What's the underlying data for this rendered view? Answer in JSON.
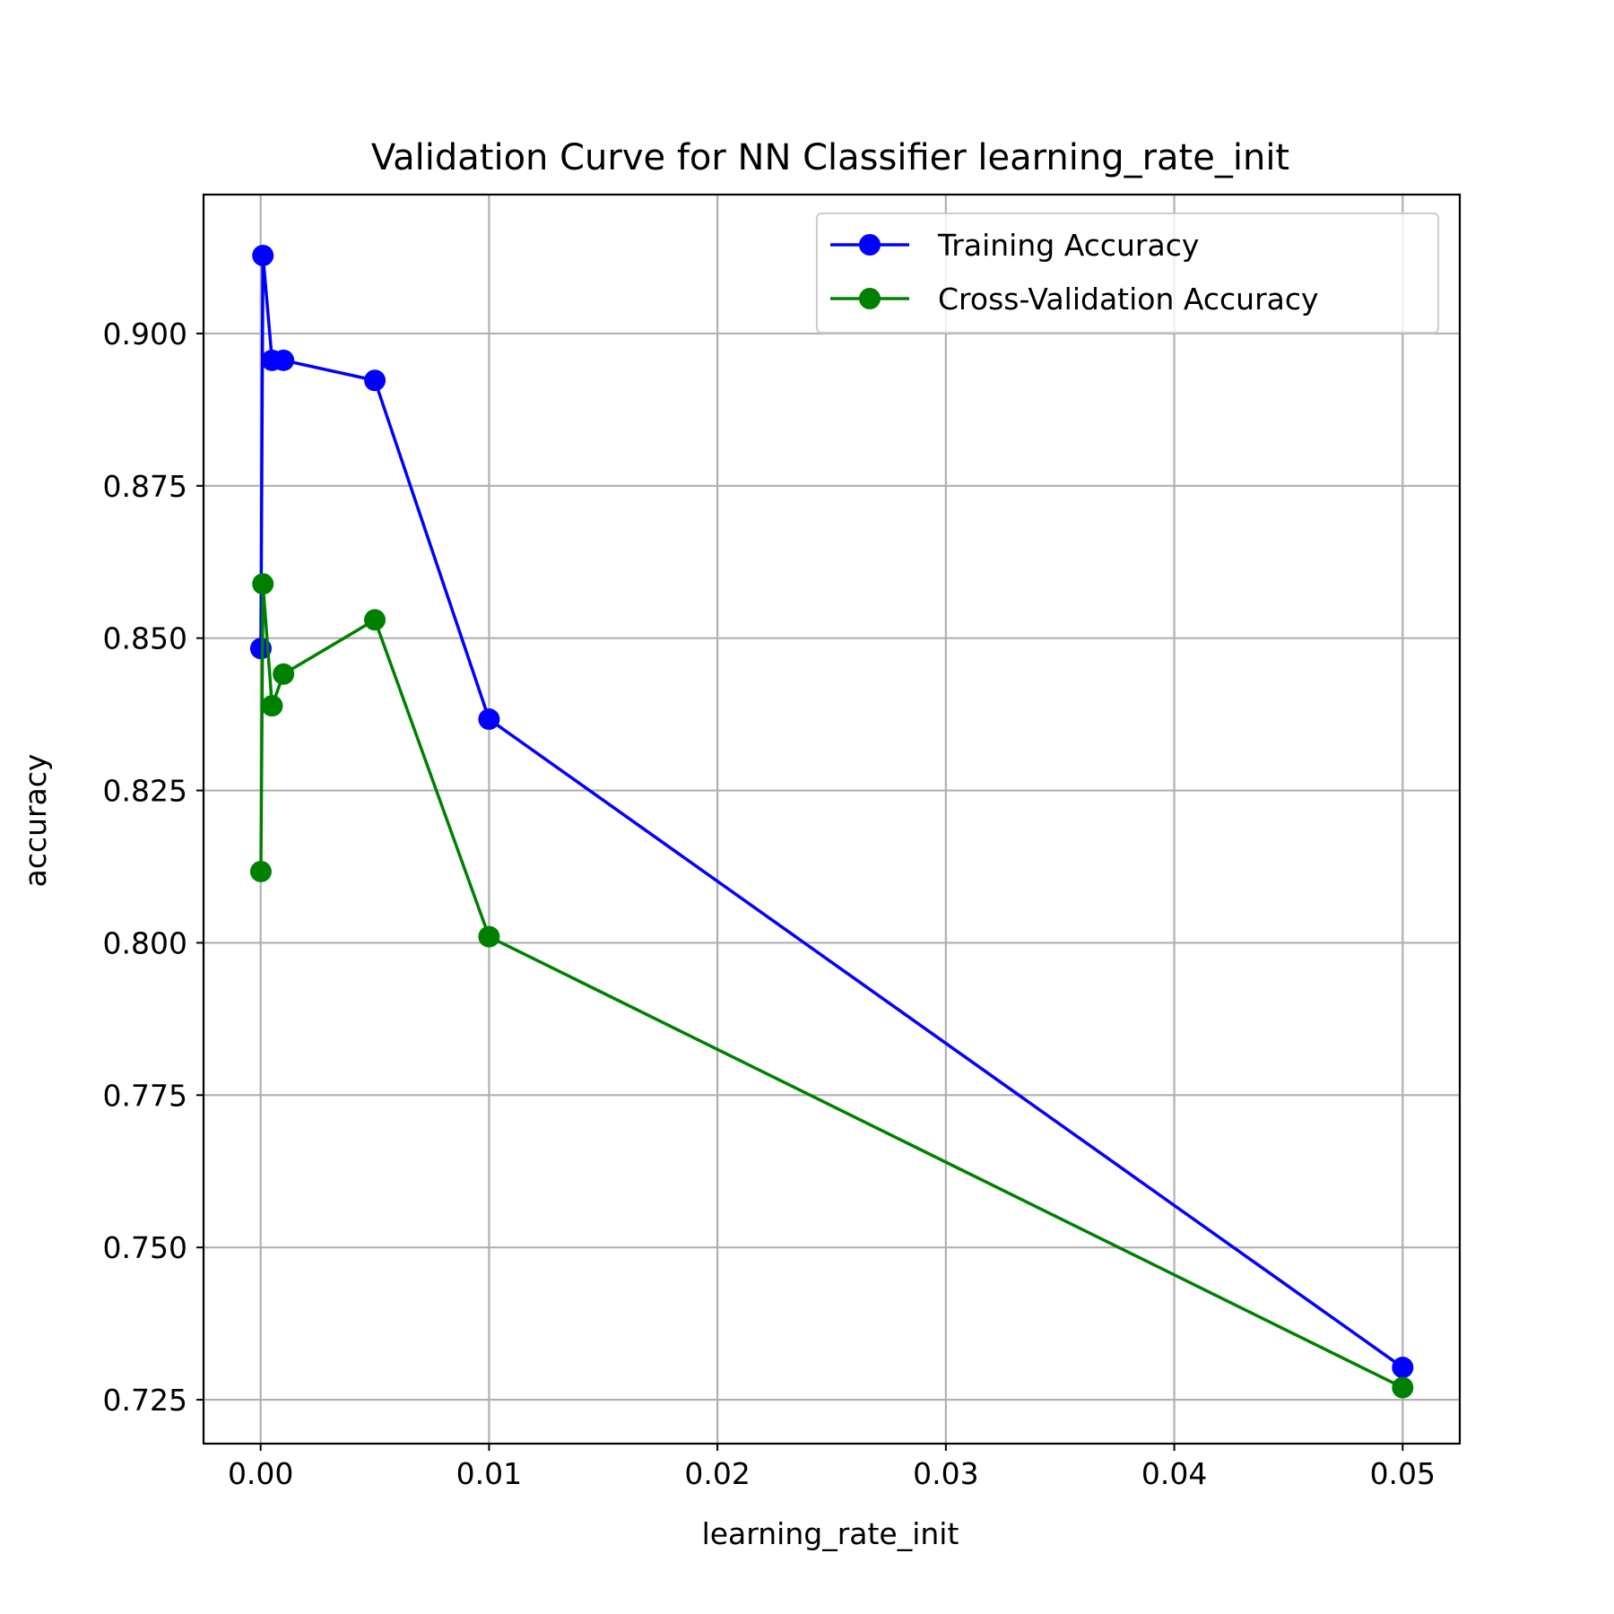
{
  "chart_data": {
    "type": "line",
    "title": "Validation Curve for NN Classifier learning_rate_init",
    "xlabel": "learning_rate_init",
    "ylabel": "accuracy",
    "xlim": [
      -0.0025,
      0.0525
    ],
    "ylim": [
      0.7178,
      0.9228
    ],
    "xticks": [
      0.0,
      0.01,
      0.02,
      0.03,
      0.04,
      0.05
    ],
    "xtick_labels": [
      "0.00",
      "0.01",
      "0.02",
      "0.03",
      "0.04",
      "0.05"
    ],
    "yticks": [
      0.725,
      0.75,
      0.775,
      0.8,
      0.825,
      0.85,
      0.875,
      0.9
    ],
    "ytick_labels": [
      "0.725",
      "0.750",
      "0.775",
      "0.800",
      "0.825",
      "0.850",
      "0.875",
      "0.900"
    ],
    "grid": true,
    "legend_position": "top-right",
    "x": [
      1e-05,
      0.0001,
      0.0005,
      0.001,
      0.005,
      0.01,
      0.05
    ],
    "series": [
      {
        "name": "Training Accuracy",
        "color": "#0000ff",
        "marker": "circle",
        "values": [
          0.8483,
          0.9128,
          0.8956,
          0.8956,
          0.8923,
          0.8367,
          0.7303
        ]
      },
      {
        "name": "Cross-Validation Accuracy",
        "color": "#008000",
        "marker": "circle",
        "values": [
          0.8117,
          0.8589,
          0.8389,
          0.8441,
          0.853,
          0.801,
          0.727
        ]
      }
    ]
  }
}
